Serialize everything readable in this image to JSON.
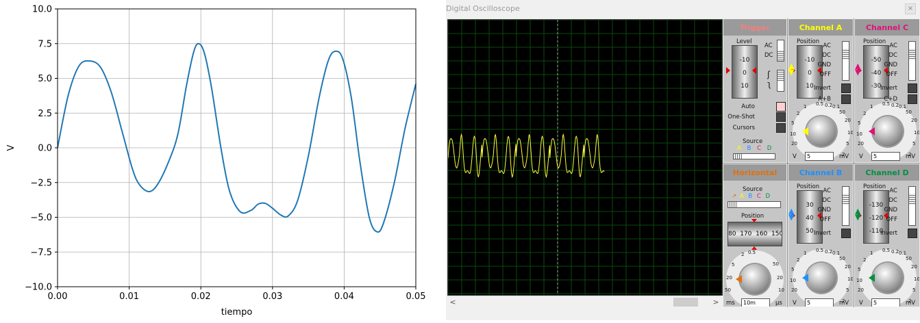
{
  "chart_data": {
    "type": "line",
    "xlabel": "tiempo",
    "ylabel": "V",
    "xlim": [
      0,
      0.05
    ],
    "ylim": [
      -10,
      10
    ],
    "xticks": [
      "0.00",
      "0.01",
      "0.02",
      "0.03",
      "0.04",
      "0.05"
    ],
    "yticks": [
      "10.0",
      "7.5",
      "5.0",
      "2.5",
      "0.0",
      "−2.5",
      "−5.0",
      "−7.5",
      "−10.0"
    ],
    "grid": true,
    "series": [
      {
        "color": "#1f77b4",
        "x": [
          0,
          0.0015,
          0.003,
          0.0045,
          0.006,
          0.0075,
          0.009,
          0.0105,
          0.0115,
          0.0128,
          0.014,
          0.0155,
          0.0168,
          0.018,
          0.019,
          0.0197,
          0.0205,
          0.0215,
          0.0228,
          0.024,
          0.0255,
          0.027,
          0.028,
          0.029,
          0.03,
          0.0312,
          0.0322,
          0.0335,
          0.035,
          0.0365,
          0.0378,
          0.0388,
          0.0398,
          0.041,
          0.0422,
          0.0435,
          0.0446,
          0.0455,
          0.047,
          0.0485,
          0.05
        ],
        "y": [
          0,
          3.8,
          5.9,
          6.25,
          5.8,
          4.0,
          1.2,
          -1.6,
          -2.7,
          -3.15,
          -2.6,
          -1.0,
          1.0,
          4.5,
          6.9,
          7.5,
          6.8,
          4.3,
          0.0,
          -3.1,
          -4.6,
          -4.5,
          -4.05,
          -4.0,
          -4.35,
          -4.85,
          -4.9,
          -3.8,
          -0.6,
          3.6,
          6.3,
          6.95,
          6.4,
          3.6,
          -1.0,
          -5.0,
          -6.05,
          -5.4,
          -2.5,
          1.4,
          4.6
        ]
      }
    ]
  },
  "oscilloscope": {
    "window_title": "Digital Oscilloscope",
    "trigger": {
      "title": "Trigger",
      "level_label": "Level",
      "drum": [
        "-10",
        "0",
        "10"
      ],
      "coupling": [
        "AC",
        "DC"
      ],
      "modes": [
        "Auto",
        "One-Shot",
        "Cursors"
      ],
      "source_label": "Source",
      "source_letters": [
        "A",
        "B",
        "C",
        "D"
      ]
    },
    "channel_a": {
      "title": "Channel A",
      "position_label": "Position",
      "drum": [
        "-10",
        "0",
        "10"
      ],
      "coupling": [
        "AC",
        "DC",
        "GND",
        "OFF"
      ],
      "options": [
        "Invert",
        "A+B"
      ],
      "dial_ticks": [
        "0.5",
        "0.2",
        "0.1",
        "1",
        "50",
        "2",
        "20",
        "5",
        "10",
        "10",
        "5",
        "20",
        "2"
      ],
      "units": [
        "V",
        "mV"
      ],
      "value": "5"
    },
    "channel_c": {
      "title": "Channel C",
      "position_label": "Position",
      "drum": [
        "-50",
        "-40",
        "-30"
      ],
      "coupling": [
        "AC",
        "DC",
        "GND",
        "OFF"
      ],
      "options": [
        "Invert",
        "C+D"
      ],
      "dial_ticks": [
        "0.5",
        "0.2",
        "0.1",
        "1",
        "50",
        "2",
        "20",
        "5",
        "10",
        "10",
        "5",
        "20",
        "2"
      ],
      "units": [
        "V",
        "mV"
      ],
      "value": "5"
    },
    "horizontal": {
      "title": "Horizontal",
      "source_label": "Source",
      "source_letters": [
        "A",
        "B",
        "C",
        "D"
      ],
      "position_label": "Position",
      "drum": [
        "80",
        "170",
        "160",
        "150"
      ],
      "dial_ticks": [
        "0.5",
        "0.2",
        "0.1",
        "1",
        "50",
        "2",
        "20",
        "5",
        "10",
        "10",
        "5",
        "20",
        "2",
        "50",
        "1",
        "100",
        "0.5",
        "200"
      ],
      "units": [
        "ms",
        "µs"
      ],
      "value": "10m"
    },
    "channel_b": {
      "title": "Channel B",
      "position_label": "Position",
      "drum": [
        "30",
        "40",
        "50"
      ],
      "coupling": [
        "AC",
        "DC",
        "GND",
        "OFF"
      ],
      "options": [
        "Invert"
      ],
      "dial_ticks": [
        "0.5",
        "0.2",
        "0.1",
        "1",
        "50",
        "2",
        "20",
        "5",
        "10",
        "10",
        "5",
        "20",
        "2"
      ],
      "units": [
        "V",
        "mV"
      ],
      "value": "5"
    },
    "channel_d": {
      "title": "Channel D",
      "position_label": "Position",
      "drum": [
        "-130",
        "-120",
        "-110"
      ],
      "coupling": [
        "AC",
        "DC",
        "GND",
        "OFF"
      ],
      "options": [
        "Invert"
      ],
      "dial_ticks": [
        "0.5",
        "0.2",
        "0.1",
        "1",
        "50",
        "2",
        "20",
        "5",
        "10",
        "10",
        "5",
        "20",
        "2"
      ],
      "units": [
        "V",
        "mV"
      ],
      "value": "5"
    },
    "colors": {
      "trigger": "#f08080",
      "channel_a": "#ffff00",
      "channel_b": "#1e90ff",
      "channel_c": "#e0107a",
      "channel_d": "#009040",
      "horizontal": "#e07010",
      "trace": "#ffff40",
      "grid": "#0c4a0c"
    }
  }
}
